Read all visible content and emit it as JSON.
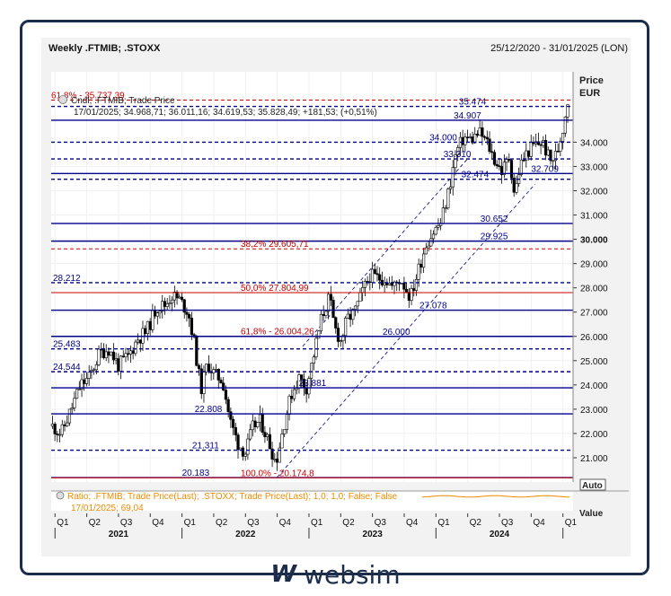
{
  "header": {
    "title": "Weekly .FTMIB; .STOXX",
    "date_range": "25/12/2020 - 31/01/2025 (LON)"
  },
  "price_axis": {
    "label": "Price",
    "currency": "EUR",
    "auto": "Auto",
    "value_label": "Value"
  },
  "legend": {
    "main_line1": "Cndl; .FTMIB; Trade Price",
    "main_line2": "17/01/2025; 34.968,71; 36.011,16; 34.619,53; 35.828,49; +181,53; (+0,51%)",
    "ratio_line1": "Ratio; .FTMIB; Trade Price(Last); .STOXX; Trade Price(Last);  1,0; 1,0; False; False",
    "ratio_line2": "17/01/2025; 69,04"
  },
  "brand": {
    "mark": "W",
    "name": "websim"
  },
  "colors": {
    "navy": "#00008b",
    "red": "#cc0000",
    "orange": "#f08a00",
    "border": "#1c2d4c"
  },
  "chart_data": {
    "type": "candlestick",
    "title": "Weekly .FTMIB; .STOXX",
    "ylim": [
      20000,
      36900
    ],
    "y_ticks": [
      {
        "value": 21000,
        "label": "21.000"
      },
      {
        "value": 22000,
        "label": "22.000"
      },
      {
        "value": 23000,
        "label": "23.000"
      },
      {
        "value": 24000,
        "label": "24.000"
      },
      {
        "value": 25000,
        "label": "25.000"
      },
      {
        "value": 26000,
        "label": "26.000"
      },
      {
        "value": 27000,
        "label": "27.000"
      },
      {
        "value": 28000,
        "label": "28.000"
      },
      {
        "value": 29000,
        "label": "29.000"
      },
      {
        "value": 30000,
        "label": "30.000",
        "bold": true
      },
      {
        "value": 31000,
        "label": "31.000"
      },
      {
        "value": 32000,
        "label": "32.000"
      },
      {
        "value": 33000,
        "label": "33.000"
      },
      {
        "value": 34000,
        "label": "34.000"
      }
    ],
    "x_quarters": [
      {
        "t": 2021.0,
        "label": "Q1"
      },
      {
        "t": 2021.25,
        "label": "Q2"
      },
      {
        "t": 2021.5,
        "label": "Q3"
      },
      {
        "t": 2021.75,
        "label": "Q4"
      },
      {
        "t": 2022.0,
        "label": "Q1"
      },
      {
        "t": 2022.25,
        "label": "Q2"
      },
      {
        "t": 2022.5,
        "label": "Q3"
      },
      {
        "t": 2022.75,
        "label": "Q4"
      },
      {
        "t": 2023.0,
        "label": "Q1"
      },
      {
        "t": 2023.25,
        "label": "Q2"
      },
      {
        "t": 2023.5,
        "label": "Q3"
      },
      {
        "t": 2023.75,
        "label": "Q4"
      },
      {
        "t": 2024.0,
        "label": "Q1"
      },
      {
        "t": 2024.25,
        "label": "Q2"
      },
      {
        "t": 2024.5,
        "label": "Q3"
      },
      {
        "t": 2024.75,
        "label": "Q4"
      },
      {
        "t": 2025.0,
        "label": "Q1"
      }
    ],
    "x_years": [
      {
        "t": 2021.5,
        "label": "2021"
      },
      {
        "t": 2022.5,
        "label": "2022"
      },
      {
        "t": 2023.5,
        "label": "2023"
      },
      {
        "t": 2024.5,
        "label": "2024"
      }
    ],
    "xlim": [
      2020.97,
      2025.08
    ],
    "price_path": [
      [
        2020.98,
        22300
      ],
      [
        2021.05,
        22000
      ],
      [
        2021.12,
        22900
      ],
      [
        2021.2,
        24000
      ],
      [
        2021.27,
        24300
      ],
      [
        2021.35,
        25300
      ],
      [
        2021.42,
        25500
      ],
      [
        2021.5,
        24800
      ],
      [
        2021.58,
        25200
      ],
      [
        2021.65,
        25900
      ],
      [
        2021.72,
        26200
      ],
      [
        2021.8,
        27200
      ],
      [
        2021.87,
        27300
      ],
      [
        2021.92,
        27700
      ],
      [
        2021.98,
        27500
      ],
      [
        2022.05,
        27000
      ],
      [
        2022.1,
        25600
      ],
      [
        2022.15,
        23800
      ],
      [
        2022.2,
        24900
      ],
      [
        2022.26,
        24400
      ],
      [
        2022.32,
        24200
      ],
      [
        2022.38,
        22500
      ],
      [
        2022.44,
        21600
      ],
      [
        2022.5,
        21200
      ],
      [
        2022.56,
        22300
      ],
      [
        2022.62,
        22500
      ],
      [
        2022.68,
        21700
      ],
      [
        2022.74,
        20800
      ],
      [
        2022.8,
        22300
      ],
      [
        2022.86,
        23600
      ],
      [
        2022.92,
        24300
      ],
      [
        2022.98,
        23900
      ],
      [
        2023.04,
        25300
      ],
      [
        2023.1,
        26800
      ],
      [
        2023.16,
        27600
      ],
      [
        2023.2,
        26400
      ],
      [
        2023.25,
        25800
      ],
      [
        2023.3,
        26700
      ],
      [
        2023.36,
        27000
      ],
      [
        2023.42,
        27800
      ],
      [
        2023.48,
        28500
      ],
      [
        2023.54,
        28400
      ],
      [
        2023.6,
        28400
      ],
      [
        2023.66,
        28000
      ],
      [
        2023.72,
        28400
      ],
      [
        2023.8,
        27600
      ],
      [
        2023.86,
        28700
      ],
      [
        2023.92,
        29800
      ],
      [
        2023.98,
        30300
      ],
      [
        2024.04,
        30700
      ],
      [
        2024.1,
        32000
      ],
      [
        2024.16,
        33600
      ],
      [
        2024.22,
        34200
      ],
      [
        2024.28,
        34100
      ],
      [
        2024.34,
        34400
      ],
      [
        2024.4,
        34000
      ],
      [
        2024.46,
        33300
      ],
      [
        2024.52,
        32800
      ],
      [
        2024.58,
        33400
      ],
      [
        2024.62,
        31800
      ],
      [
        2024.66,
        33000
      ],
      [
        2024.72,
        33600
      ],
      [
        2024.78,
        33900
      ],
      [
        2024.84,
        34000
      ],
      [
        2024.9,
        33200
      ],
      [
        2024.95,
        33500
      ],
      [
        2025.0,
        34600
      ],
      [
        2025.04,
        35800
      ]
    ],
    "horizontal_levels": [
      {
        "value": 35737.39,
        "label": "61,8% - 35.737,39",
        "style": "dashed",
        "color": "red"
      },
      {
        "value": 35474,
        "label": "35.474",
        "style": "dashed"
      },
      {
        "value": 34907,
        "label": "34.907",
        "style": "solid"
      },
      {
        "value": 34000,
        "label": "34.000",
        "style": "dashed"
      },
      {
        "value": 33310,
        "label": "33.310",
        "style": "dashed"
      },
      {
        "value": 32709,
        "label": "32.709",
        "style": "solid"
      },
      {
        "value": 32474,
        "label": "32.474",
        "style": "dashed"
      },
      {
        "value": 30652,
        "label": "30.652",
        "style": "solid"
      },
      {
        "value": 29925,
        "label": "29.925",
        "style": "solid"
      },
      {
        "value": 29605.71,
        "label": "38,2%  29.605,71",
        "style": "dashed",
        "color": "red"
      },
      {
        "value": 28212,
        "label": "28.212",
        "style": "dashed"
      },
      {
        "value": 27804.99,
        "label": "50,0%  27.804,99",
        "style": "solid",
        "color": "red"
      },
      {
        "value": 27078,
        "label": "27.078",
        "style": "solid"
      },
      {
        "value": 26004.26,
        "label": "61,8% - 26.004,26",
        "style": "solid",
        "color": "red"
      },
      {
        "value": 26000,
        "label": "26.000",
        "style": "solid"
      },
      {
        "value": 25483,
        "label": "25.483",
        "style": "dashed"
      },
      {
        "value": 24544,
        "label": "24.544",
        "style": "dashed"
      },
      {
        "value": 23881,
        "label": "23.881",
        "style": "solid"
      },
      {
        "value": 22808,
        "label": "22.808",
        "style": "solid"
      },
      {
        "value": 21311,
        "label": "21.311",
        "style": "dashed"
      },
      {
        "value": 20183,
        "label": "20.183",
        "style": "solid"
      },
      {
        "value": 20174.8,
        "label": "100,0% - 20.174,8",
        "style": "solid",
        "color": "red"
      }
    ],
    "channel": {
      "from": [
        2022.75,
        20200
      ],
      "to": [
        2024.65,
        31500
      ],
      "offset": 4200
    },
    "ratio_series": {
      "name": "Ratio",
      "last": 69.04
    }
  }
}
